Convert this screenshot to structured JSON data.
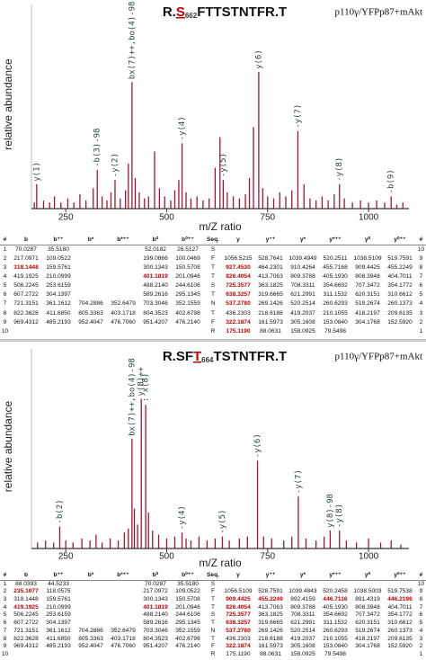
{
  "chart_data": [
    {
      "type": "spectrum",
      "title_prefix": "R.",
      "title_site": "S",
      "title_site_number": "662",
      "title_suffix": "FTTSTNTFR.T",
      "subtitle": "p110γ/YFPp87+mAkt",
      "x_label": "m/Z ratio",
      "y_label": "relative abundance",
      "color": "#a3152f",
      "label_color": "#24463a",
      "site_color": "#c00000",
      "xlim": [
        165,
        1100
      ],
      "xticks": [
        250,
        500,
        750,
        1000
      ],
      "ylim": [
        0,
        100
      ],
      "x": [
        172,
        178,
        195,
        210,
        222,
        238,
        255,
        270,
        285,
        300,
        318,
        328,
        340,
        352,
        362,
        372,
        385,
        398,
        405,
        414,
        422,
        432,
        445,
        455,
        470,
        482,
        495,
        510,
        520,
        530,
        538,
        548,
        560,
        575,
        590,
        605,
        620,
        632,
        640,
        650,
        665,
        680,
        695,
        705,
        715,
        728,
        738,
        750,
        765,
        780,
        795,
        810,
        825,
        840,
        855,
        870,
        885,
        900,
        915,
        928,
        940,
        960,
        980,
        1000,
        1020,
        1040,
        1056,
        1070,
        1085
      ],
      "values": [
        3,
        12,
        4,
        3,
        6,
        3,
        5,
        3,
        7,
        4,
        10,
        19,
        6,
        4,
        8,
        14,
        5,
        9,
        22,
        62,
        15,
        8,
        5,
        6,
        28,
        10,
        6,
        4,
        9,
        14,
        32,
        8,
        5,
        6,
        4,
        5,
        20,
        35,
        14,
        8,
        6,
        5,
        7,
        15,
        40,
        67,
        10,
        6,
        5,
        8,
        6,
        9,
        38,
        12,
        5,
        4,
        6,
        4,
        7,
        12,
        5,
        3,
        4,
        3,
        4,
        3,
        6,
        2,
        3
      ],
      "labels": [
        null,
        "y(1)",
        null,
        null,
        null,
        null,
        null,
        null,
        null,
        null,
        null,
        "-b(3)-98",
        null,
        null,
        null,
        "-y(2)",
        null,
        null,
        null,
        "bx(7)++,bo(4)-98",
        null,
        null,
        null,
        null,
        null,
        null,
        null,
        null,
        null,
        null,
        "-y(4)",
        null,
        null,
        null,
        null,
        null,
        null,
        null,
        "-y(5)",
        null,
        null,
        null,
        null,
        null,
        null,
        "y(6)",
        null,
        null,
        null,
        null,
        null,
        null,
        "-y(7)",
        null,
        null,
        null,
        null,
        null,
        null,
        "-y(8)",
        null,
        null,
        null,
        null,
        null,
        null,
        "-b(9)",
        null,
        null
      ]
    },
    {
      "type": "spectrum",
      "title_prefix": "R.SF",
      "title_site": "T",
      "title_site_number": "664",
      "title_suffix": "TSTNTFR.T",
      "subtitle": "p110γ/YFPp87+mAkt",
      "x_label": "m/Z ratio",
      "y_label": "relative abundance",
      "color": "#a3152f",
      "label_color": "#24463a",
      "site_color": "#c00000",
      "xlim": [
        165,
        1100
      ],
      "xticks": [
        250,
        500,
        750,
        1000
      ],
      "ylim": [
        0,
        100
      ],
      "x": [
        180,
        200,
        220,
        235,
        250,
        268,
        290,
        310,
        325,
        340,
        360,
        380,
        395,
        405,
        414,
        420,
        428,
        437,
        448,
        455,
        465,
        480,
        500,
        520,
        538,
        548,
        560,
        580,
        600,
        620,
        638,
        655,
        680,
        700,
        725,
        740,
        760,
        790,
        810,
        826,
        845,
        870,
        890,
        905,
        928,
        945,
        970,
        1000,
        1030,
        1056,
        1080
      ],
      "values": [
        3,
        4,
        3,
        11,
        4,
        3,
        5,
        4,
        7,
        3,
        5,
        4,
        8,
        10,
        55,
        20,
        12,
        75,
        72,
        18,
        9,
        7,
        5,
        6,
        8,
        5,
        4,
        6,
        4,
        5,
        6,
        4,
        5,
        6,
        44,
        6,
        5,
        4,
        6,
        26,
        5,
        4,
        6,
        9,
        9,
        4,
        3,
        5,
        3,
        4,
        2
      ],
      "labels": [
        null,
        null,
        null,
        "-b(2)",
        null,
        null,
        null,
        null,
        null,
        null,
        null,
        null,
        null,
        null,
        "bx(7)++,bo(4)-98",
        null,
        null,
        "y(8)++",
        ": x(8)",
        null,
        null,
        null,
        null,
        null,
        "-y(4)",
        null,
        null,
        null,
        null,
        null,
        "-y(5)",
        null,
        null,
        null,
        "-y(6)",
        null,
        null,
        null,
        null,
        "-y(7)",
        null,
        null,
        null,
        "y(8)-98",
        "-y(8)",
        null,
        null,
        null,
        null,
        null,
        null
      ]
    }
  ],
  "tables": [
    {
      "header": [
        "#",
        "b",
        "b⁺⁺",
        "b*",
        "b*⁺⁺",
        "b⁰",
        "b⁰⁺⁺",
        "Seq.",
        "y",
        "y⁺⁺",
        "y*",
        "y*⁺⁺",
        "y⁰",
        "y⁰⁺⁺",
        "#"
      ],
      "highlight_color": "#c00000",
      "highlight": [
        [
          2,
          1
        ],
        [
          3,
          5
        ],
        [
          2,
          8
        ],
        [
          3,
          8
        ],
        [
          4,
          8
        ],
        [
          5,
          8
        ],
        [
          6,
          8
        ],
        [
          8,
          8
        ],
        [
          9,
          8
        ]
      ],
      "rows": [
        [
          "1",
          "70.0287",
          "35.5180",
          null,
          null,
          "52.0182",
          "26.5127",
          "S",
          null,
          null,
          null,
          null,
          null,
          null,
          "10"
        ],
        [
          "2",
          "217.0971",
          "109.0522",
          null,
          null,
          "199.0866",
          "100.0469",
          "F",
          "1056.5215",
          "528.7641",
          "1039.4949",
          "520.2511",
          "1038.5109",
          "519.7591",
          "9"
        ],
        [
          "3",
          "318.1448",
          "159.5761",
          null,
          null,
          "300.1343",
          "150.5708",
          "T",
          "927.4530",
          "464.2301",
          "910.4264",
          "455.7168",
          "909.4425",
          "455.2249",
          "8"
        ],
        [
          "4",
          "419.1925",
          "210.0999",
          null,
          null,
          "401.1819",
          "201.0946",
          "T",
          "826.4054",
          "413.7063",
          "809.3788",
          "405.1930",
          "808.3948",
          "404.7011",
          "7"
        ],
        [
          "5",
          "506.2245",
          "253.6159",
          null,
          null,
          "488.2140",
          "244.6106",
          "S",
          "725.3577",
          "363.1825",
          "708.3311",
          "354.6692",
          "707.3472",
          "354.1772",
          "6"
        ],
        [
          "6",
          "607.2722",
          "304.1397",
          null,
          null,
          "589.2616",
          "295.1345",
          "T",
          "638.3257",
          "319.6665",
          "621.2991",
          "311.1532",
          "620.3151",
          "310.6612",
          "5"
        ],
        [
          "7",
          "721.3151",
          "361.1612",
          "704.2886",
          "352.6479",
          "703.3046",
          "352.1559",
          "N",
          "537.2780",
          "269.1426",
          "520.2514",
          "260.6293",
          "519.2674",
          "260.1373",
          "4"
        ],
        [
          "8",
          "822.3628",
          "411.6850",
          "805.3363",
          "403.1718",
          "804.3523",
          "402.6798",
          "T",
          "436.2303",
          "218.6188",
          "419.2037",
          "210.1055",
          "418.2197",
          "209.6135",
          "3"
        ],
        [
          "9",
          "969.4312",
          "485.2193",
          "952.4047",
          "476.7060",
          "951.4207",
          "476.2140",
          "F",
          "322.1874",
          "161.5973",
          "305.1608",
          "153.0840",
          "304.1768",
          "152.5920",
          "2"
        ],
        [
          "10",
          null,
          null,
          null,
          null,
          null,
          null,
          "R",
          "175.1190",
          "88.0631",
          "158.0925",
          "79.5498",
          null,
          null,
          "1"
        ]
      ]
    },
    {
      "header": [
        "#",
        "b",
        "b⁺⁺",
        "b*",
        "b*⁺⁺",
        "b⁰",
        "b⁰⁺⁺",
        "Seq.",
        "y",
        "y⁺⁺",
        "y*",
        "y*⁺⁺",
        "y⁰",
        "y⁰⁺⁺",
        "#"
      ],
      "highlight_color": "#c00000",
      "highlight": [
        [
          1,
          1
        ],
        [
          3,
          1
        ],
        [
          3,
          5
        ],
        [
          2,
          8
        ],
        [
          2,
          9
        ],
        [
          2,
          11
        ],
        [
          2,
          13
        ],
        [
          3,
          8
        ],
        [
          4,
          8
        ],
        [
          5,
          8
        ],
        [
          6,
          8
        ],
        [
          8,
          8
        ]
      ],
      "rows": [
        [
          "1",
          "88.0393",
          "44.5233",
          null,
          null,
          "70.0287",
          "35.5180",
          "S",
          null,
          null,
          null,
          null,
          null,
          null,
          "10"
        ],
        [
          "2",
          "235.1077",
          "118.0575",
          null,
          null,
          "217.0972",
          "109.0522",
          "F",
          "1056.5109",
          "528.7591",
          "1039.4843",
          "520.2458",
          "1038.5003",
          "519.7538",
          "9"
        ],
        [
          "3",
          "318.1448",
          "159.5761",
          null,
          null,
          "300.1343",
          "150.5708",
          "T",
          "909.4425",
          "455.2249",
          "892.4159",
          "446.7116",
          "891.4319",
          "446.2196",
          "8"
        ],
        [
          "4",
          "419.1925",
          "210.0999",
          null,
          null,
          "401.1819",
          "201.0946",
          "T",
          "826.4054",
          "413.7063",
          "809.3788",
          "405.1930",
          "808.3948",
          "404.7011",
          "7"
        ],
        [
          "5",
          "506.2245",
          "253.6159",
          null,
          null,
          "488.2140",
          "244.6106",
          "S",
          "725.3577",
          "363.1825",
          "708.3311",
          "354.6692",
          "707.3472",
          "354.1772",
          "6"
        ],
        [
          "6",
          "607.2722",
          "304.1397",
          null,
          null,
          "589.2616",
          "295.1345",
          "T",
          "638.3257",
          "319.6665",
          "621.2991",
          "311.1532",
          "620.3151",
          "310.6612",
          "5"
        ],
        [
          "7",
          "721.3151",
          "361.1612",
          "704.2886",
          "352.6479",
          "703.3046",
          "352.1559",
          "N",
          "537.2780",
          "269.1426",
          "520.2514",
          "260.6293",
          "519.2674",
          "260.1373",
          "4"
        ],
        [
          "8",
          "822.3628",
          "411.6850",
          "805.3363",
          "403.1718",
          "804.3523",
          "402.6798",
          "T",
          "436.2303",
          "218.6188",
          "419.2037",
          "210.1055",
          "418.2197",
          "209.6135",
          "3"
        ],
        [
          "9",
          "969.4312",
          "485.2193",
          "952.4047",
          "476.7060",
          "951.4207",
          "476.2140",
          "F",
          "322.1874",
          "161.5973",
          "305.1608",
          "153.0840",
          "304.1768",
          "152.5920",
          "2"
        ],
        [
          "10",
          null,
          null,
          null,
          null,
          null,
          null,
          "R",
          "175.1190",
          "88.0631",
          "158.0925",
          "79.5498",
          null,
          null,
          "1"
        ]
      ]
    }
  ]
}
